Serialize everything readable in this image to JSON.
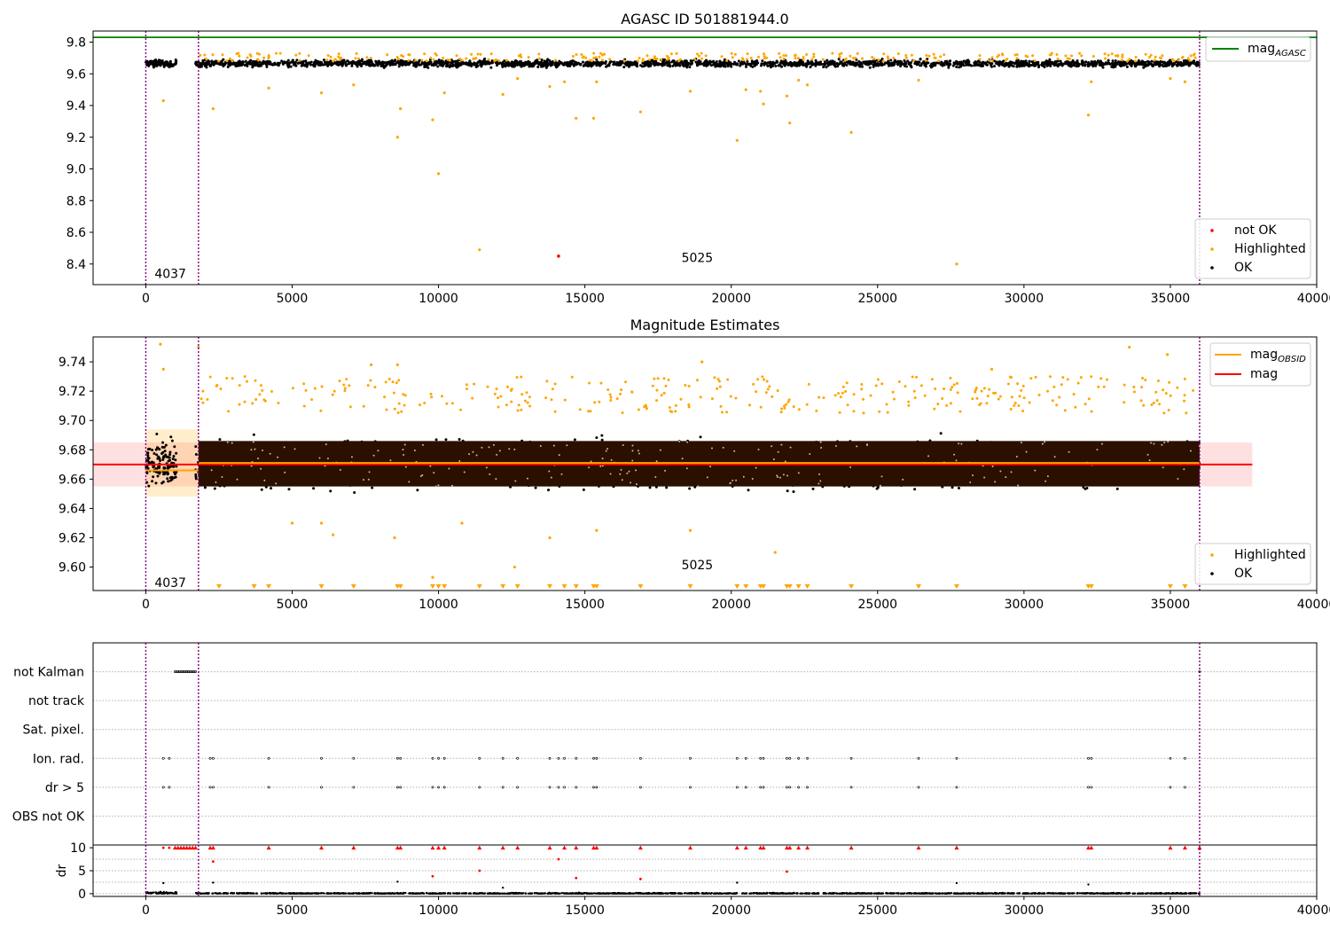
{
  "chart_data": [
    {
      "type": "scatter",
      "title": "AGASC ID 501881944.0",
      "xlim": [
        -1800,
        40000
      ],
      "ylim": [
        8.27,
        9.87
      ],
      "xticks": [
        0,
        5000,
        10000,
        15000,
        20000,
        25000,
        30000,
        35000,
        40000
      ],
      "yticks": [
        8.4,
        8.6,
        8.8,
        9.0,
        9.2,
        9.4,
        9.6,
        9.8
      ],
      "ytick_decimals": 1,
      "vlines": [
        0,
        1800,
        36000
      ],
      "annotations": [
        {
          "x": 300,
          "y": 8.34,
          "text": "4037"
        },
        {
          "x": 18300,
          "y": 8.44,
          "text": "5025"
        }
      ],
      "hlines": [
        {
          "name": "mag_AGASC",
          "y": 9.83,
          "color": "#008000"
        }
      ],
      "legend_top": {
        "position": "top-right",
        "entries": [
          {
            "label": "mag",
            "sub": "AGASC",
            "kind": "line",
            "color": "#008000"
          }
        ]
      },
      "legend_bottom": {
        "position": "bottom-right",
        "entries": [
          {
            "label": "not OK",
            "kind": "dot",
            "color": "#ff0000"
          },
          {
            "label": "Highlighted",
            "kind": "dot",
            "color": "#ffa500"
          },
          {
            "label": "OK",
            "kind": "dot",
            "color": "#000000"
          }
        ]
      },
      "series": [
        {
          "name": "OK",
          "color": "#000000",
          "band": {
            "segments": [
              [
                0,
                1050
              ],
              [
                1700,
                36000
              ]
            ],
            "center": 9.665,
            "spread": 0.035,
            "count": 2400
          }
        },
        {
          "name": "Highlighted",
          "color": "#ffa500",
          "points": [
            [
              600,
              9.43
            ],
            [
              2300,
              9.38
            ],
            [
              4200,
              9.51
            ],
            [
              6000,
              9.48
            ],
            [
              7100,
              9.53
            ],
            [
              8600,
              9.2
            ],
            [
              8700,
              9.38
            ],
            [
              9800,
              9.31
            ],
            [
              10000,
              8.97
            ],
            [
              10200,
              9.48
            ],
            [
              11400,
              8.49
            ],
            [
              12200,
              9.47
            ],
            [
              12700,
              9.57
            ],
            [
              13800,
              9.52
            ],
            [
              14300,
              9.55
            ],
            [
              14700,
              9.32
            ],
            [
              15300,
              9.32
            ],
            [
              15400,
              9.55
            ],
            [
              16900,
              9.36
            ],
            [
              18600,
              9.49
            ],
            [
              20200,
              9.18
            ],
            [
              20500,
              9.5
            ],
            [
              21000,
              9.49
            ],
            [
              21100,
              9.41
            ],
            [
              21900,
              9.46
            ],
            [
              22000,
              9.29
            ],
            [
              22300,
              9.56
            ],
            [
              22600,
              9.53
            ],
            [
              24100,
              9.23
            ],
            [
              26400,
              9.56
            ],
            [
              27700,
              8.4
            ],
            [
              32200,
              9.34
            ],
            [
              32300,
              9.55
            ],
            [
              35000,
              9.57
            ],
            [
              35500,
              9.55
            ]
          ],
          "top_band": {
            "count": 260,
            "y_min": 9.68,
            "y_max": 9.73
          }
        },
        {
          "name": "not OK",
          "color": "#ff0000",
          "points": [
            [
              14100,
              8.45
            ]
          ]
        }
      ]
    },
    {
      "type": "scatter",
      "title": "Magnitude Estimates",
      "xlim": [
        -1800,
        40000
      ],
      "ylim": [
        9.584,
        9.757
      ],
      "xticks": [
        0,
        5000,
        10000,
        15000,
        20000,
        25000,
        30000,
        35000,
        40000
      ],
      "yticks": [
        9.6,
        9.62,
        9.64,
        9.66,
        9.68,
        9.7,
        9.72,
        9.74
      ],
      "ytick_decimals": 2,
      "vlines": [
        0,
        1800,
        36000
      ],
      "annotations": [
        {
          "x": 300,
          "y": 9.5895,
          "text": "4037"
        },
        {
          "x": 18300,
          "y": 9.6015,
          "text": "5025"
        }
      ],
      "hlines": [
        {
          "name": "mag",
          "y": 9.67,
          "x_range": [
            -1800,
            37800
          ],
          "color": "#ff0000"
        },
        {
          "name": "mag_OBSID",
          "y": 9.671,
          "x_range": [
            1800,
            36000
          ],
          "color": "#ffa500"
        },
        {
          "name": "mag_OBSID_4037",
          "y": 9.666,
          "x_range": [
            0,
            1800
          ],
          "color": "#ffa500"
        }
      ],
      "bands": [
        {
          "x_range": [
            -1800,
            37800
          ],
          "y_range": [
            9.655,
            9.685
          ],
          "color": "#ff0000",
          "opacity": 0.12
        },
        {
          "x_range": [
            0,
            1800
          ],
          "y_range": [
            9.648,
            9.694
          ],
          "color": "#ffa500",
          "opacity": 0.2
        }
      ],
      "legend_top": {
        "position": "top-right",
        "entries": [
          {
            "label": "mag",
            "sub": "OBSID",
            "kind": "line",
            "color": "#ffa500"
          },
          {
            "label": "mag",
            "kind": "line",
            "color": "#ff0000"
          }
        ]
      },
      "legend_bottom": {
        "position": "bottom-right",
        "entries": [
          {
            "label": "Highlighted",
            "kind": "dot",
            "color": "#ffa500"
          },
          {
            "label": "OK",
            "kind": "dot",
            "color": "#000000"
          }
        ]
      },
      "series": [
        {
          "name": "OK",
          "color": "#000000",
          "band": {
            "segments": [
              [
                0,
                1050
              ],
              [
                1700,
                36000
              ]
            ],
            "center": 9.67,
            "spread": 0.024,
            "count": 3000
          },
          "dense_band": {
            "x_range": [
              1800,
              36000
            ],
            "y_range": [
              9.655,
              9.686
            ],
            "color": "#2b1000"
          }
        },
        {
          "name": "Highlighted",
          "color": "#ffa500",
          "points": [
            [
              500,
              9.752
            ],
            [
              600,
              9.735
            ],
            [
              1800,
              9.75
            ],
            [
              5000,
              9.63
            ],
            [
              6000,
              9.63
            ],
            [
              6400,
              9.622
            ],
            [
              8500,
              9.62
            ],
            [
              9800,
              9.593
            ],
            [
              10800,
              9.63
            ],
            [
              12600,
              9.6
            ],
            [
              13800,
              9.62
            ],
            [
              15400,
              9.625
            ],
            [
              18600,
              9.625
            ],
            [
              21500,
              9.61
            ],
            [
              33600,
              9.75
            ],
            [
              34900,
              9.745
            ],
            [
              19000,
              9.74
            ],
            [
              8600,
              9.738
            ],
            [
              7700,
              9.738
            ],
            [
              28900,
              9.735
            ]
          ],
          "top_band": {
            "count": 320,
            "y_min": 9.705,
            "y_max": 9.73
          },
          "floor_markers": [
            2500,
            3700,
            4200,
            6000,
            7100,
            8600,
            8700,
            9800,
            10000,
            10200,
            11400,
            12200,
            12700,
            13800,
            14300,
            14700,
            15300,
            15400,
            16900,
            18600,
            20200,
            20500,
            21000,
            21100,
            21900,
            22000,
            22300,
            22600,
            24100,
            26400,
            27700,
            32200,
            32300,
            35000,
            35500
          ]
        }
      ]
    },
    {
      "type": "scatter",
      "title": "",
      "xlim": [
        -1800,
        40000
      ],
      "xticks": [
        0,
        5000,
        10000,
        15000,
        20000,
        25000,
        30000,
        35000,
        40000
      ],
      "vlines": [
        0,
        1800,
        36000
      ],
      "flag_rows": [
        {
          "label": "not Kalman",
          "points_range": [
            1000,
            1700
          ]
        },
        {
          "label": "not track"
        },
        {
          "label": "Sat. pixel."
        },
        {
          "label": "Ion. rad.",
          "points": [
            600,
            800,
            2200,
            2300,
            4200,
            6000,
            7100,
            8600,
            8700,
            9800,
            10000,
            10200,
            11400,
            12200,
            12700,
            13800,
            14100,
            14300,
            14700,
            15300,
            15400,
            16900,
            18600,
            20200,
            20500,
            21000,
            21100,
            21900,
            22000,
            22300,
            22600,
            24100,
            26400,
            27700,
            32200,
            32300,
            35000,
            35500
          ]
        },
        {
          "label": "dr > 5",
          "points": [
            600,
            800,
            2200,
            2300,
            4200,
            6000,
            7100,
            8600,
            8700,
            9800,
            10000,
            10200,
            11400,
            12200,
            12700,
            13800,
            14100,
            14300,
            14700,
            15300,
            15400,
            16900,
            18600,
            20200,
            20500,
            21000,
            21100,
            21900,
            22000,
            22300,
            22600,
            24100,
            26400,
            27700,
            32200,
            32300,
            35000,
            35500
          ]
        },
        {
          "label": "OBS not OK"
        }
      ],
      "dr": {
        "ylabel": "dr",
        "ylim": [
          -0.6,
          10.6
        ],
        "yticks": [
          0,
          5,
          10
        ],
        "clip": 10,
        "red_points": [
          [
            14100,
            7.5
          ],
          [
            11400,
            5.0
          ],
          [
            21900,
            4.8
          ],
          [
            14700,
            3.4
          ],
          [
            9800,
            3.8
          ],
          [
            16900,
            3.2
          ],
          [
            2300,
            7.0
          ],
          [
            600,
            10
          ],
          [
            800,
            10
          ]
        ],
        "red_clipped": [
          1000,
          1100,
          1200,
          1300,
          1400,
          1500,
          1600,
          1700,
          2200,
          2300,
          4200,
          6000,
          7100,
          8600,
          8700,
          9800,
          10000,
          10200,
          11400,
          12200,
          12700,
          13800,
          14300,
          14700,
          15300,
          15400,
          16900,
          18600,
          20200,
          20500,
          21000,
          21100,
          21900,
          22000,
          22300,
          22600,
          24100,
          26400,
          27700,
          32200,
          32300,
          35000,
          35500,
          36000
        ],
        "black_outliers": [
          [
            600,
            2.3
          ],
          [
            2300,
            2.4
          ],
          [
            8600,
            2.6
          ],
          [
            20200,
            2.4
          ],
          [
            27700,
            2.3
          ],
          [
            32200,
            2.0
          ],
          [
            12200,
            1.3
          ]
        ]
      }
    }
  ]
}
